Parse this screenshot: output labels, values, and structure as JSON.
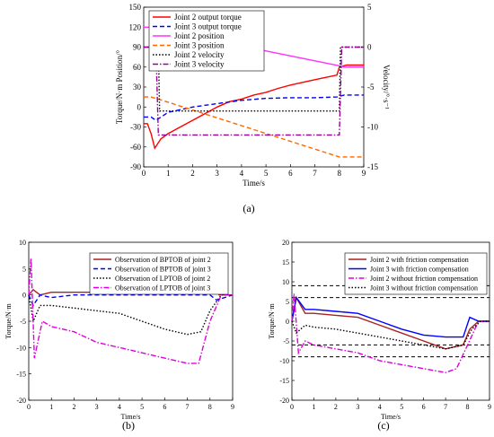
{
  "figure": {
    "panel_labels": [
      "(a)",
      "(b)",
      "(c)"
    ]
  },
  "chart_data": [
    {
      "type": "line",
      "panel": "(a)",
      "xlabel": "Time/s",
      "ylabel": "Torque/N·m   Position/°",
      "y2label": "Velocity/°·s⁻¹",
      "xlim": [
        0,
        9
      ],
      "ylim": [
        -90,
        150
      ],
      "y2lim": [
        -15,
        5
      ],
      "xticks": [
        0,
        1,
        2,
        3,
        4,
        5,
        6,
        7,
        8,
        9
      ],
      "yticks": [
        -90,
        -60,
        -30,
        0,
        30,
        60,
        90,
        120,
        150
      ],
      "y2ticks": [
        -15,
        -10,
        -5,
        0,
        5
      ],
      "grid": false,
      "legend": "top-left",
      "series": [
        {
          "name": "Joint 2 output torque",
          "color": "#ff0000",
          "style": "solid",
          "axis": "left",
          "x": [
            0.0,
            0.15,
            0.3,
            0.45,
            0.7,
            1.0,
            1.5,
            2.0,
            2.5,
            3.0,
            3.5,
            4.0,
            4.5,
            5.0,
            5.5,
            6.0,
            6.5,
            7.0,
            7.5,
            7.9,
            8.0,
            8.3,
            9.0
          ],
          "y": [
            -25,
            -25,
            -40,
            -62,
            -48,
            -40,
            -30,
            -20,
            -10,
            0,
            8,
            12,
            18,
            22,
            28,
            33,
            37,
            41,
            45,
            48,
            60,
            63,
            63
          ]
        },
        {
          "name": "Joint 3 output torque",
          "color": "#0000ff",
          "style": "dashed",
          "axis": "left",
          "x": [
            0.0,
            0.3,
            0.5,
            1.0,
            2.0,
            3.0,
            4.0,
            5.0,
            6.0,
            7.0,
            7.9,
            8.2,
            9.0
          ],
          "y": [
            -15,
            -15,
            -20,
            -8,
            0,
            5,
            10,
            13,
            14,
            14,
            15,
            18,
            18
          ]
        },
        {
          "name": "Joint 2 position",
          "color": "#ff33ff",
          "style": "solid",
          "axis": "left",
          "x": [
            0.0,
            0.3,
            0.6,
            8.0,
            8.2,
            9.0
          ],
          "y": [
            120,
            120,
            117,
            62,
            60,
            60
          ]
        },
        {
          "name": "Joint 3 position",
          "color": "#ff6600",
          "style": "dashed",
          "axis": "left",
          "x": [
            0.0,
            0.3,
            0.6,
            8.0,
            8.2,
            9.0
          ],
          "y": [
            15,
            15,
            12,
            -75,
            -75,
            -75
          ]
        },
        {
          "name": "Joint 2 velocity",
          "color": "#000000",
          "style": "dotted",
          "axis": "right",
          "x": [
            0.0,
            0.6,
            0.65,
            7.95,
            8.0,
            8.05,
            9.0
          ],
          "y": [
            0,
            0,
            -8,
            -8,
            -8,
            0,
            0
          ]
        },
        {
          "name": "Joint 3 velocity",
          "color": "#990099",
          "style": "dashdot",
          "axis": "right",
          "x": [
            0.0,
            0.5,
            0.6,
            7.95,
            8.0,
            8.1,
            9.0
          ],
          "y": [
            0,
            0,
            -11,
            -11,
            -11,
            0,
            0
          ]
        }
      ]
    },
    {
      "type": "line",
      "panel": "(b)",
      "xlabel": "Time/s",
      "ylabel": "Torque/N·m",
      "xlim": [
        0,
        9
      ],
      "ylim": [
        -20,
        10
      ],
      "xticks": [
        0,
        1,
        2,
        3,
        4,
        5,
        6,
        7,
        8,
        9
      ],
      "yticks": [
        -20,
        -15,
        -10,
        -5,
        0,
        5,
        10
      ],
      "grid": false,
      "legend": "top-right",
      "series": [
        {
          "name": "Observation of BPTOB of joint 2",
          "color": "#aa2222",
          "style": "solid",
          "x": [
            0.0,
            0.2,
            0.5,
            1.0,
            2.0,
            3.0,
            4.0,
            5.0,
            6.0,
            7.0,
            7.8,
            8.1,
            8.4,
            9.0
          ],
          "y": [
            0,
            1,
            0,
            0.5,
            0.5,
            0.5,
            0.5,
            0.5,
            0.5,
            0.5,
            0.5,
            3,
            0,
            0
          ]
        },
        {
          "name": "Observation of BPTOB of joint 3",
          "color": "#0000ff",
          "style": "dashed",
          "x": [
            0.0,
            0.2,
            0.5,
            1.0,
            2.0,
            3.0,
            4.0,
            5.0,
            6.0,
            7.0,
            8.0,
            8.3,
            9.0
          ],
          "y": [
            0,
            -2,
            0,
            -0.5,
            0,
            0,
            0,
            0,
            0,
            0,
            0,
            -1,
            0
          ]
        },
        {
          "name": "Observation of LPTOB of joint 2",
          "color": "#000000",
          "style": "dotted",
          "x": [
            0.0,
            0.2,
            0.5,
            1.0,
            2.0,
            3.0,
            4.0,
            5.0,
            6.0,
            7.0,
            7.6,
            8.0,
            8.5,
            9.0
          ],
          "y": [
            0,
            -5,
            -2,
            -2,
            -2.5,
            -3,
            -3.5,
            -5,
            -6.5,
            -7.5,
            -7,
            -3,
            0,
            0
          ]
        },
        {
          "name": "Observation of LPTOB of joint 3",
          "color": "#dd00dd",
          "style": "dashdot",
          "x": [
            0.0,
            0.1,
            0.25,
            0.6,
            1.0,
            2.0,
            3.0,
            4.0,
            5.0,
            6.0,
            7.0,
            7.5,
            8.0,
            8.5,
            9.0
          ],
          "y": [
            0,
            7,
            -12,
            -5,
            -6,
            -7,
            -9,
            -10,
            -11,
            -12,
            -13,
            -13,
            -5,
            0,
            0
          ]
        }
      ]
    },
    {
      "type": "line",
      "panel": "(c)",
      "xlabel": "Time/s",
      "ylabel": "Torque/N·m",
      "xlim": [
        0,
        9
      ],
      "ylim": [
        -20,
        20
      ],
      "xticks": [
        0,
        1,
        2,
        3,
        4,
        5,
        6,
        7,
        8,
        9
      ],
      "yticks": [
        -20,
        -15,
        -10,
        -5,
        0,
        5,
        10,
        15,
        20
      ],
      "grid": false,
      "legend": "top-right",
      "reference_lines": [
        9,
        6,
        -6,
        -9
      ],
      "series": [
        {
          "name": "Joint 2 with friction compensation",
          "color": "#aa2222",
          "style": "solid",
          "x": [
            0.0,
            0.2,
            0.6,
            1.0,
            2.0,
            3.0,
            4.0,
            5.0,
            6.0,
            7.0,
            7.8,
            8.1,
            8.5,
            9.0
          ],
          "y": [
            0,
            6,
            2,
            2,
            1.5,
            1,
            -1,
            -3,
            -5,
            -7,
            -6,
            -2,
            0,
            0
          ]
        },
        {
          "name": "Joint 3 with friction compensation",
          "color": "#0000ff",
          "style": "solid",
          "x": [
            0.0,
            0.2,
            0.6,
            1.0,
            2.0,
            3.0,
            4.0,
            5.0,
            6.0,
            7.0,
            7.8,
            8.1,
            8.5,
            9.0
          ],
          "y": [
            0,
            6,
            3,
            3,
            2.5,
            2,
            0,
            -2,
            -3.5,
            -4,
            -4,
            1,
            0,
            0
          ]
        },
        {
          "name": "Joint 2 without friction compensation",
          "color": "#dd00dd",
          "style": "dashdot",
          "x": [
            0.0,
            0.1,
            0.3,
            0.6,
            1.0,
            2.0,
            3.0,
            4.0,
            5.0,
            6.0,
            7.0,
            7.5,
            8.0,
            8.5,
            9.0
          ],
          "y": [
            0,
            7,
            -8,
            -5,
            -6,
            -7,
            -8,
            -10,
            -11,
            -12,
            -13,
            -12,
            -6,
            0,
            0
          ]
        },
        {
          "name": "Joint 3 without friction compensation",
          "color": "#000000",
          "style": "dotted",
          "x": [
            0.0,
            0.2,
            0.6,
            1.0,
            2.0,
            3.0,
            4.0,
            5.0,
            6.0,
            7.0,
            7.8,
            8.2,
            8.6,
            9.0
          ],
          "y": [
            0,
            -3,
            -1,
            -1.5,
            -2,
            -3,
            -4,
            -5,
            -6,
            -7,
            -6,
            -2,
            0,
            0
          ]
        }
      ]
    }
  ]
}
